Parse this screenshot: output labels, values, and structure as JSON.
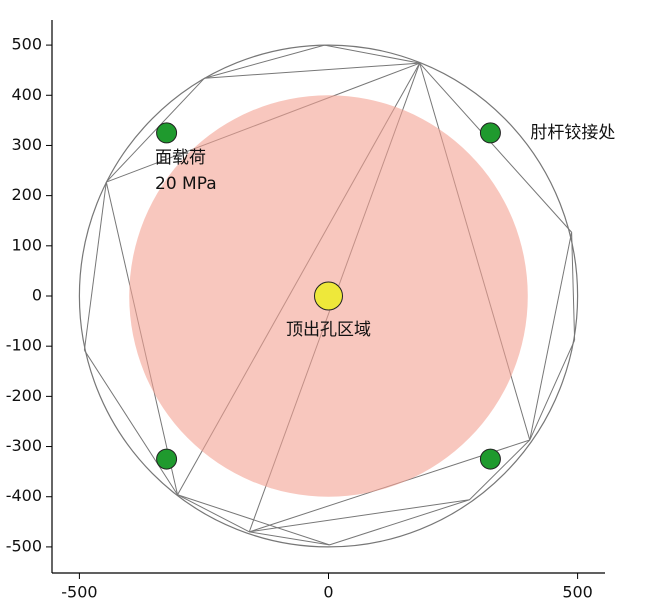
{
  "chart_data": {
    "type": "mesh",
    "xlim": [
      -555,
      555
    ],
    "ylim": [
      -552,
      550
    ],
    "xticks": [
      -500,
      0,
      500
    ],
    "yticks": [
      -500,
      -400,
      -300,
      -200,
      -100,
      0,
      100,
      200,
      300,
      400,
      500
    ],
    "boundary_radius": 500,
    "region": {
      "radius": 400,
      "color": "#f3a193",
      "label_lines": [
        "面载荷",
        "20 MPa"
      ]
    },
    "mesh_color": "#777777",
    "mesh_nodes": [
      [
        183,
        464
      ],
      [
        -249,
        434
      ],
      [
        -446,
        227
      ],
      [
        -490,
        -108
      ],
      [
        -303,
        -396
      ],
      [
        -159,
        -470
      ],
      [
        2,
        -496
      ],
      [
        283,
        -406
      ],
      [
        404,
        -287
      ],
      [
        494,
        -88
      ],
      [
        488,
        127
      ],
      [
        -8,
        500
      ]
    ],
    "mesh_edges": [
      [
        1,
        0
      ],
      [
        0,
        10
      ],
      [
        10,
        9
      ],
      [
        9,
        8
      ],
      [
        8,
        7
      ],
      [
        7,
        6
      ],
      [
        6,
        5
      ],
      [
        5,
        4
      ],
      [
        4,
        3
      ],
      [
        3,
        2
      ],
      [
        2,
        1
      ],
      [
        0,
        2
      ],
      [
        0,
        4
      ],
      [
        0,
        5
      ],
      [
        0,
        8
      ],
      [
        2,
        4
      ],
      [
        5,
        8
      ],
      [
        7,
        5
      ],
      [
        1,
        11
      ],
      [
        11,
        0
      ],
      [
        10,
        8
      ],
      [
        6,
        4
      ]
    ],
    "series": [
      {
        "name": "肘杆铰接处",
        "color": "#1f9a2e",
        "x": [
          -325,
          325,
          -325,
          325
        ],
        "values": [
          325,
          325,
          -325,
          -325
        ]
      },
      {
        "name": "顶出孔区域",
        "color": "#eee83a",
        "x": [
          0
        ],
        "values": [
          0
        ]
      }
    ]
  }
}
